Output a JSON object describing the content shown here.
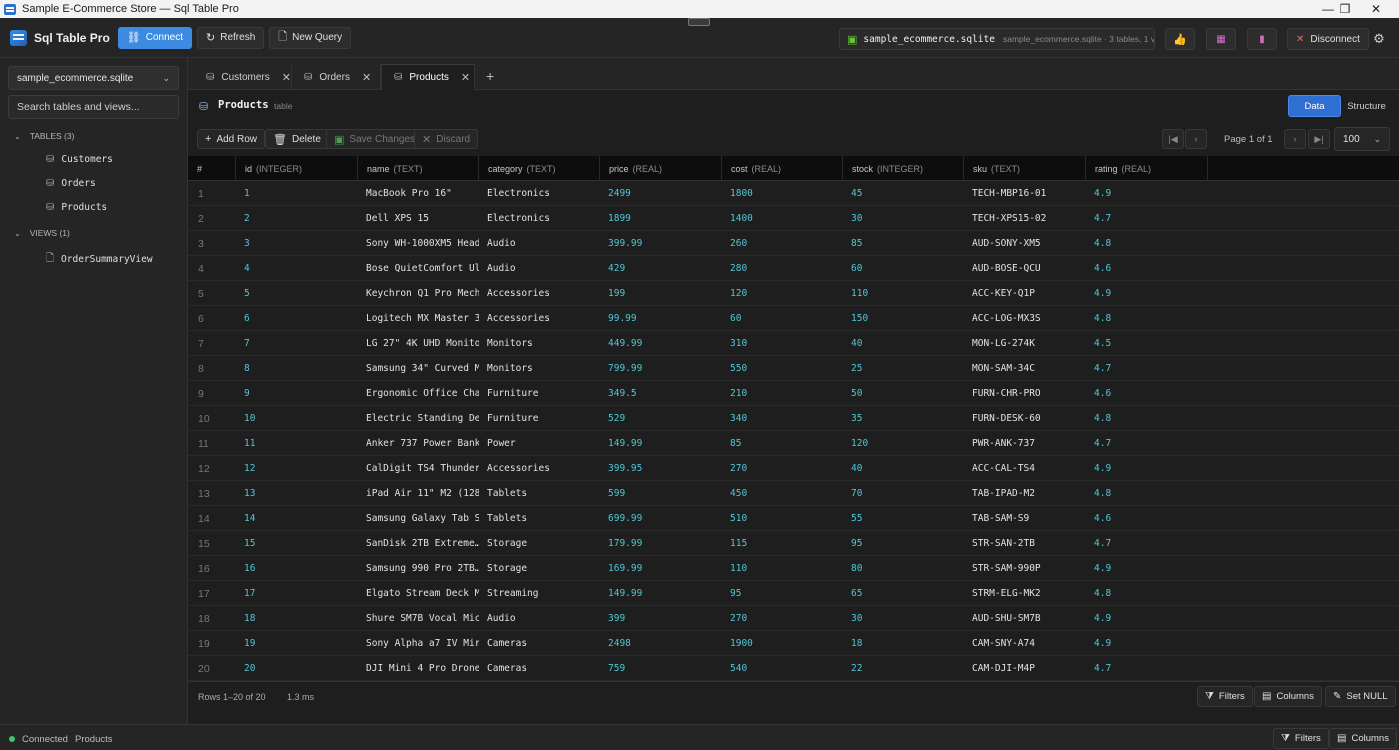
{
  "window": {
    "title": "Sample E-Commerce Store — Sql Table Pro",
    "controls": [
      "—",
      "❐",
      "✕"
    ]
  },
  "toolbar": {
    "brand": "Sql Table Pro",
    "connect": "Connect",
    "refresh": "Refresh",
    "new_query": "New Query",
    "db_file": "sample_ecommerce.sqlite",
    "db_meta": "sample_ecommerce.sqlite · 3 tables, 1 view",
    "disconnect": "Disconnect"
  },
  "sidebar": {
    "database": "sample_ecommerce.sqlite",
    "search_placeholder": "Search tables and views...",
    "tables_header": "TABLES (3)",
    "tables": [
      "Customers",
      "Orders",
      "Products"
    ],
    "views_header": "VIEWS (1)",
    "views": [
      "OrderSummaryView"
    ]
  },
  "tabs": [
    {
      "label": "Customers",
      "active": false
    },
    {
      "label": "Orders",
      "active": false
    },
    {
      "label": "Products",
      "active": true
    }
  ],
  "table_header": {
    "name": "Products",
    "type": "table",
    "view_data": "Data",
    "view_structure": "Structure"
  },
  "actions": {
    "add_row": "Add Row",
    "delete": "Delete",
    "save": "Save Changes",
    "discard": "Discard",
    "page_label": "Page 1 of 1",
    "page_size": "100"
  },
  "grid": {
    "columns": [
      {
        "name": "#",
        "type": ""
      },
      {
        "name": "id",
        "type": "(INTEGER)"
      },
      {
        "name": "name",
        "type": "(TEXT)"
      },
      {
        "name": "category",
        "type": "(TEXT)"
      },
      {
        "name": "price",
        "type": "(REAL)"
      },
      {
        "name": "cost",
        "type": "(REAL)"
      },
      {
        "name": "stock",
        "type": "(INTEGER)"
      },
      {
        "name": "sku",
        "type": "(TEXT)"
      },
      {
        "name": "rating",
        "type": "(REAL)"
      }
    ],
    "rows": [
      [
        "1",
        "1",
        "MacBook Pro 16\"",
        "Electronics",
        "2499",
        "1800",
        "45",
        "TECH-MBP16-01",
        "4.9"
      ],
      [
        "2",
        "2",
        "Dell XPS 15",
        "Electronics",
        "1899",
        "1400",
        "30",
        "TECH-XPS15-02",
        "4.7"
      ],
      [
        "3",
        "3",
        "Sony WH-1000XM5 Head…",
        "Audio",
        "399.99",
        "260",
        "85",
        "AUD-SONY-XM5",
        "4.8"
      ],
      [
        "4",
        "4",
        "Bose QuietComfort Ul…",
        "Audio",
        "429",
        "280",
        "60",
        "AUD-BOSE-QCU",
        "4.6"
      ],
      [
        "5",
        "5",
        "Keychron Q1 Pro Mech…",
        "Accessories",
        "199",
        "120",
        "110",
        "ACC-KEY-Q1P",
        "4.9"
      ],
      [
        "6",
        "6",
        "Logitech MX Master 3…",
        "Accessories",
        "99.99",
        "60",
        "150",
        "ACC-LOG-MX3S",
        "4.8"
      ],
      [
        "7",
        "7",
        "LG 27\" 4K UHD Monitor",
        "Monitors",
        "449.99",
        "310",
        "40",
        "MON-LG-274K",
        "4.5"
      ],
      [
        "8",
        "8",
        "Samsung 34\" Curved M…",
        "Monitors",
        "799.99",
        "550",
        "25",
        "MON-SAM-34C",
        "4.7"
      ],
      [
        "9",
        "9",
        "Ergonomic Office Cha…",
        "Furniture",
        "349.5",
        "210",
        "50",
        "FURN-CHR-PRO",
        "4.6"
      ],
      [
        "10",
        "10",
        "Electric Standing De…",
        "Furniture",
        "529",
        "340",
        "35",
        "FURN-DESK-60",
        "4.8"
      ],
      [
        "11",
        "11",
        "Anker 737 Power Bank…",
        "Power",
        "149.99",
        "85",
        "120",
        "PWR-ANK-737",
        "4.7"
      ],
      [
        "12",
        "12",
        "CalDigit TS4 Thunder…",
        "Accessories",
        "399.95",
        "270",
        "40",
        "ACC-CAL-TS4",
        "4.9"
      ],
      [
        "13",
        "13",
        "iPad Air 11\" M2 (128…",
        "Tablets",
        "599",
        "450",
        "70",
        "TAB-IPAD-M2",
        "4.8"
      ],
      [
        "14",
        "14",
        "Samsung Galaxy Tab S9",
        "Tablets",
        "699.99",
        "510",
        "55",
        "TAB-SAM-S9",
        "4.6"
      ],
      [
        "15",
        "15",
        "SanDisk 2TB Extreme…",
        "Storage",
        "179.99",
        "115",
        "95",
        "STR-SAN-2TB",
        "4.7"
      ],
      [
        "16",
        "16",
        "Samsung 990 Pro 2TB…",
        "Storage",
        "169.99",
        "110",
        "80",
        "STR-SAM-990P",
        "4.9"
      ],
      [
        "17",
        "17",
        "Elgato Stream Deck M…",
        "Streaming",
        "149.99",
        "95",
        "65",
        "STRM-ELG-MK2",
        "4.8"
      ],
      [
        "18",
        "18",
        "Shure SM7B Vocal Mic…",
        "Audio",
        "399",
        "270",
        "30",
        "AUD-SHU-SM7B",
        "4.9"
      ],
      [
        "19",
        "19",
        "Sony Alpha a7 IV Mir…",
        "Cameras",
        "2498",
        "1900",
        "18",
        "CAM-SNY-A74",
        "4.9"
      ],
      [
        "20",
        "20",
        "DJI Mini 4 Pro Drone",
        "Cameras",
        "759",
        "540",
        "22",
        "CAM-DJI-M4P",
        "4.7"
      ]
    ]
  },
  "grid_footer": {
    "rows": "Rows 1–20 of 20",
    "time": "1.3 ms",
    "filters": "Filters",
    "columns": "Columns",
    "set_null": "Set NULL"
  },
  "statusbar": {
    "status": "Connected",
    "table": "Products",
    "filters": "Filters",
    "columns": "Columns"
  }
}
